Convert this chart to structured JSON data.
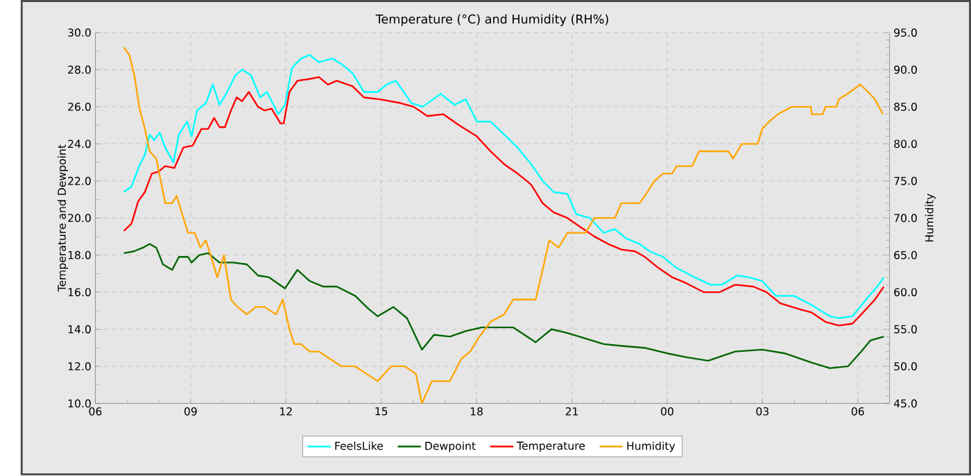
{
  "chart_data": {
    "type": "line",
    "title": "Temperature (°C) and Humidity (RH%)",
    "ylabel": "Temperature and Dewpoint",
    "y2label": "Humidity",
    "xlim": [
      6,
      31
    ],
    "xticks": [
      {
        "value": 6,
        "label": "06"
      },
      {
        "value": 9,
        "label": "09"
      },
      {
        "value": 12,
        "label": "12"
      },
      {
        "value": 15,
        "label": "15"
      },
      {
        "value": 18,
        "label": "18"
      },
      {
        "value": 21,
        "label": "21"
      },
      {
        "value": 24,
        "label": "00"
      },
      {
        "value": 27,
        "label": "03"
      },
      {
        "value": 30,
        "label": "06"
      }
    ],
    "ylim": [
      10,
      30
    ],
    "yticks": [
      {
        "value": 10,
        "label": "10.0"
      },
      {
        "value": 12,
        "label": "12.0"
      },
      {
        "value": 14,
        "label": "14.0"
      },
      {
        "value": 16,
        "label": "16.0"
      },
      {
        "value": 18,
        "label": "18.0"
      },
      {
        "value": 20,
        "label": "20.0"
      },
      {
        "value": 22,
        "label": "22.0"
      },
      {
        "value": 24,
        "label": "24.0"
      },
      {
        "value": 26,
        "label": "26.0"
      },
      {
        "value": 28,
        "label": "28.0"
      },
      {
        "value": 30,
        "label": "30.0"
      }
    ],
    "y2lim": [
      45,
      95
    ],
    "y2ticks": [
      {
        "value": 45,
        "label": "45.0"
      },
      {
        "value": 50,
        "label": "50.0"
      },
      {
        "value": 55,
        "label": "55.0"
      },
      {
        "value": 60,
        "label": "60.0"
      },
      {
        "value": 65,
        "label": "65.0"
      },
      {
        "value": 70,
        "label": "70.0"
      },
      {
        "value": 75,
        "label": "75.0"
      },
      {
        "value": 80,
        "label": "80.0"
      },
      {
        "value": 85,
        "label": "85.0"
      },
      {
        "value": 90,
        "label": "90.0"
      },
      {
        "value": 95,
        "label": "95.0"
      }
    ],
    "grid": true,
    "legend": "bottom",
    "series": [
      {
        "name": "FeelsLike",
        "color": "#00ffff",
        "x": [
          6.9,
          7.14,
          7.38,
          7.56,
          7.71,
          7.85,
          8.03,
          8.2,
          8.46,
          8.63,
          8.89,
          9.03,
          9.2,
          9.48,
          9.7,
          9.91,
          10.12,
          10.41,
          10.62,
          10.9,
          11.19,
          11.4,
          11.76,
          11.97,
          12.19,
          12.47,
          12.75,
          13.04,
          13.46,
          13.75,
          14.1,
          14.46,
          14.89,
          15.17,
          15.46,
          15.95,
          16.31,
          16.87,
          17.3,
          17.66,
          18.01,
          18.44,
          18.87,
          19.29,
          19.72,
          20.08,
          20.43,
          20.86,
          21.14,
          21.57,
          22.0,
          22.35,
          22.71,
          23.13,
          23.45,
          23.87,
          24.3,
          24.87,
          25.36,
          25.72,
          26.21,
          26.57,
          26.99,
          27.42,
          27.99,
          28.55,
          29.12,
          29.4,
          29.83,
          30.26,
          30.61,
          30.82
        ],
        "values": [
          21.4,
          21.7,
          22.8,
          23.4,
          24.5,
          24.2,
          24.6,
          23.8,
          23.0,
          24.5,
          25.2,
          24.4,
          25.8,
          26.2,
          27.2,
          26.1,
          26.7,
          27.7,
          28.0,
          27.7,
          26.5,
          26.8,
          25.6,
          26.1,
          28.1,
          28.6,
          28.8,
          28.4,
          28.6,
          28.3,
          27.8,
          26.8,
          26.8,
          27.2,
          27.4,
          26.2,
          26.0,
          26.7,
          26.1,
          26.4,
          25.2,
          25.2,
          24.5,
          23.8,
          22.9,
          22.0,
          21.4,
          21.3,
          20.2,
          20.0,
          19.2,
          19.4,
          18.9,
          18.6,
          18.2,
          17.9,
          17.3,
          16.8,
          16.4,
          16.4,
          16.9,
          16.8,
          16.6,
          15.8,
          15.8,
          15.3,
          14.7,
          14.6,
          14.7,
          15.6,
          16.3,
          16.8
        ]
      },
      {
        "name": "Dewpoint",
        "color": "#006400",
        "x": [
          6.9,
          7.21,
          7.5,
          7.71,
          7.92,
          8.13,
          8.42,
          8.63,
          8.92,
          9.03,
          9.27,
          9.55,
          9.91,
          10.34,
          10.77,
          11.12,
          11.47,
          11.97,
          12.36,
          12.75,
          13.18,
          13.6,
          14.18,
          14.6,
          14.89,
          15.38,
          15.81,
          16.28,
          16.66,
          17.16,
          17.66,
          18.16,
          18.65,
          19.15,
          19.86,
          20.36,
          20.86,
          21.43,
          22.0,
          22.56,
          23.28,
          24.0,
          24.58,
          25.29,
          26.14,
          26.99,
          27.7,
          28.55,
          29.12,
          29.69,
          30.11,
          30.4,
          30.82
        ],
        "values": [
          18.1,
          18.2,
          18.4,
          18.6,
          18.4,
          17.5,
          17.2,
          17.9,
          17.9,
          17.6,
          18.0,
          18.1,
          17.6,
          17.6,
          17.5,
          16.9,
          16.8,
          16.2,
          17.2,
          16.6,
          16.3,
          16.3,
          15.8,
          15.1,
          14.7,
          15.2,
          14.6,
          12.9,
          13.7,
          13.6,
          13.9,
          14.1,
          14.1,
          14.1,
          13.3,
          14.0,
          13.8,
          13.5,
          13.2,
          13.1,
          13.0,
          12.7,
          12.5,
          12.3,
          12.8,
          12.9,
          12.7,
          12.2,
          11.9,
          12.0,
          12.8,
          13.4,
          13.6
        ]
      },
      {
        "name": "Temperature",
        "color": "#ff0000",
        "x": [
          6.9,
          7.14,
          7.35,
          7.56,
          7.78,
          7.99,
          8.2,
          8.49,
          8.77,
          9.06,
          9.34,
          9.55,
          9.74,
          9.91,
          10.08,
          10.27,
          10.45,
          10.62,
          10.83,
          11.12,
          11.33,
          11.55,
          11.83,
          11.93,
          12.11,
          12.36,
          12.75,
          13.04,
          13.32,
          13.6,
          14.1,
          14.46,
          14.96,
          15.6,
          16.02,
          16.45,
          16.95,
          17.45,
          18.01,
          18.44,
          18.87,
          19.29,
          19.72,
          20.08,
          20.43,
          20.86,
          21.28,
          21.71,
          22.14,
          22.56,
          22.99,
          23.3,
          23.73,
          24.16,
          24.58,
          25.15,
          25.65,
          26.14,
          26.71,
          27.13,
          27.56,
          28.13,
          28.55,
          28.98,
          29.4,
          29.83,
          30.11,
          30.54,
          30.82
        ],
        "values": [
          19.3,
          19.7,
          20.9,
          21.4,
          22.4,
          22.5,
          22.8,
          22.7,
          23.8,
          23.9,
          24.8,
          24.8,
          25.4,
          24.9,
          24.9,
          25.8,
          26.5,
          26.3,
          26.8,
          26.0,
          25.8,
          25.9,
          25.1,
          25.1,
          26.8,
          27.4,
          27.5,
          27.6,
          27.2,
          27.4,
          27.1,
          26.5,
          26.4,
          26.2,
          26.0,
          25.5,
          25.6,
          25.0,
          24.4,
          23.6,
          22.9,
          22.4,
          21.8,
          20.8,
          20.3,
          20.0,
          19.5,
          19.0,
          18.6,
          18.3,
          18.2,
          17.9,
          17.3,
          16.8,
          16.5,
          16.0,
          16.0,
          16.4,
          16.3,
          16.0,
          15.4,
          15.1,
          14.9,
          14.4,
          14.2,
          14.3,
          14.8,
          15.6,
          16.3
        ]
      },
      {
        "name": "Humidity",
        "color": "#ffa500",
        "axis": "y2",
        "x": [
          6.9,
          7.07,
          7.24,
          7.38,
          7.56,
          7.71,
          7.92,
          8.06,
          8.2,
          8.42,
          8.56,
          8.77,
          8.92,
          9.13,
          9.31,
          9.48,
          9.7,
          9.84,
          10.05,
          10.27,
          10.48,
          10.77,
          11.05,
          11.33,
          11.69,
          11.9,
          12.11,
          12.26,
          12.47,
          12.75,
          13.04,
          13.39,
          13.75,
          14.18,
          14.53,
          14.89,
          15.31,
          15.74,
          16.09,
          16.28,
          16.59,
          16.87,
          17.16,
          17.52,
          17.8,
          18.09,
          18.44,
          18.87,
          19.15,
          19.86,
          20.08,
          20.29,
          20.58,
          20.86,
          21.43,
          21.71,
          22.35,
          22.56,
          23.13,
          23.3,
          23.45,
          23.6,
          23.87,
          24.16,
          24.3,
          24.79,
          25.0,
          25.36,
          25.93,
          26.07,
          26.35,
          26.85,
          26.99,
          27.21,
          27.49,
          27.92,
          28.52,
          28.55,
          28.9,
          28.98,
          29.33,
          29.4,
          29.76,
          30.08,
          30.33,
          30.54,
          30.79
        ],
        "values": [
          93,
          92,
          89,
          85,
          82,
          79,
          78,
          75,
          72,
          72,
          73,
          70,
          68,
          68,
          66,
          67,
          64,
          62,
          65,
          59,
          58,
          57,
          58,
          58,
          57,
          59,
          55,
          53,
          53,
          52,
          52,
          51,
          50,
          50,
          49,
          48,
          50,
          50,
          49,
          45,
          48,
          48,
          48,
          51,
          52,
          54,
          56,
          57,
          59,
          59,
          63,
          67,
          66,
          68,
          68,
          70,
          70,
          72,
          72,
          73,
          74,
          75,
          76,
          76,
          77,
          77,
          79,
          79,
          79,
          78,
          80,
          80,
          82,
          83,
          84,
          85,
          85,
          84,
          84,
          85,
          85,
          86,
          87,
          88,
          87,
          86,
          84
        ]
      }
    ]
  }
}
